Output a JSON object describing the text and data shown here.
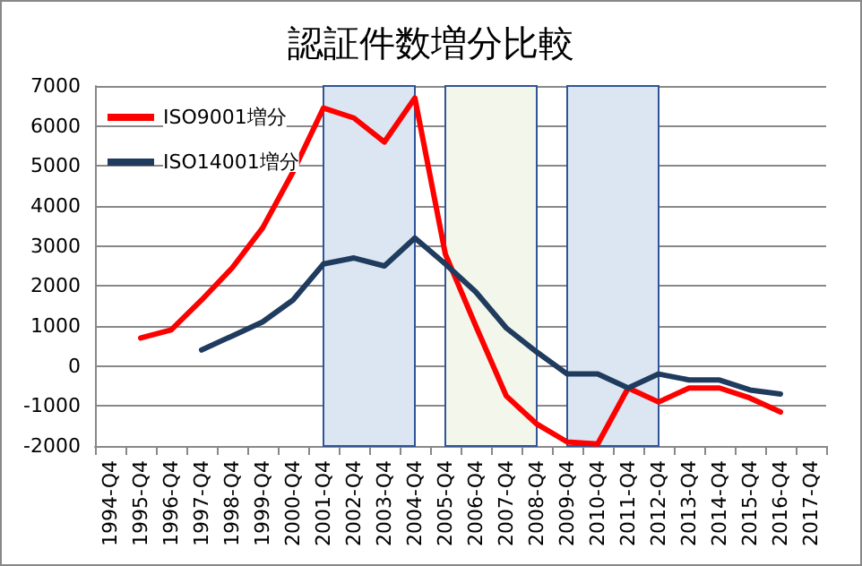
{
  "chart_data": {
    "type": "line",
    "title": "認証件数増分比較",
    "categories": [
      "1994-Q4",
      "1995-Q4",
      "1996-Q4",
      "1997-Q4",
      "1998-Q4",
      "1999-Q4",
      "2000-Q4",
      "2001-Q4",
      "2002-Q4",
      "2003-Q4",
      "2004-Q4",
      "2005-Q4",
      "2006-Q4",
      "2007-Q4",
      "2008-Q4",
      "2009-Q4",
      "2010-Q4",
      "2011-Q4",
      "2012-Q4",
      "2013-Q4",
      "2014-Q4",
      "2015-Q4",
      "2016-Q4",
      "2017-Q4"
    ],
    "series": [
      {
        "name": "ISO9001増分",
        "color": "#ff0000",
        "values": [
          null,
          700,
          900,
          1650,
          2450,
          3450,
          4850,
          6450,
          6200,
          5600,
          6700,
          2800,
          1000,
          -750,
          -1450,
          -1900,
          -1950,
          -550,
          -900,
          -550,
          -550,
          -800,
          -1150,
          null
        ]
      },
      {
        "name": "ISO14001増分",
        "color": "#1f3b5e",
        "values": [
          null,
          null,
          null,
          400,
          750,
          1100,
          1650,
          2550,
          2700,
          2500,
          3200,
          2550,
          1850,
          950,
          350,
          -200,
          -200,
          -550,
          -200,
          -350,
          -350,
          -600,
          -700,
          null
        ]
      }
    ],
    "ylim": [
      -2000,
      7000
    ],
    "yticks": [
      -2000,
      -1000,
      0,
      1000,
      2000,
      3000,
      4000,
      5000,
      6000,
      7000
    ],
    "bands": [
      {
        "axis": "x",
        "from": "2001-Q4",
        "to": "2004-Q4",
        "color": "#dce6f2"
      },
      {
        "axis": "x",
        "from": "2005-Q4",
        "to": "2008-Q4",
        "color": "#f3f6ea"
      },
      {
        "axis": "x",
        "from": "2009-Q4",
        "to": "2012-Q4",
        "color": "#dce6f2"
      }
    ],
    "grid": "y",
    "legend": "top left",
    "marker": "none",
    "line_style": "solid"
  }
}
